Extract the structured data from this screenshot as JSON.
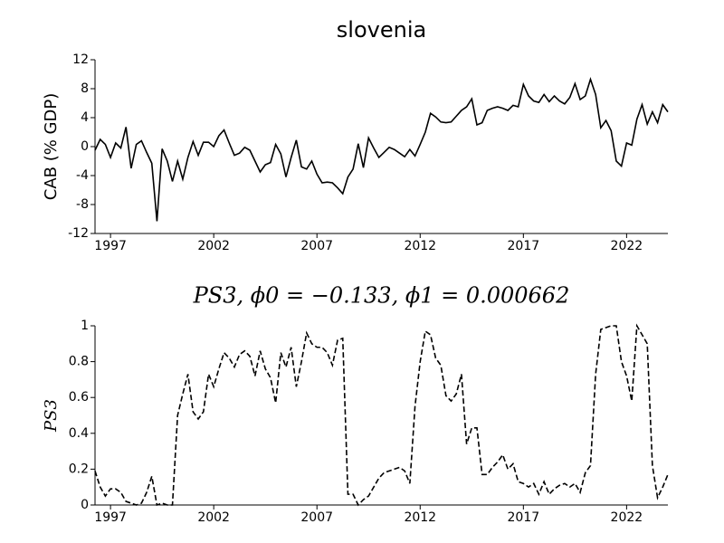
{
  "chart_data": [
    {
      "type": "line",
      "title": "slovenia",
      "ylabel": "CAB (% GDP)",
      "color": "#000000",
      "dash": false,
      "x": [
        1996.25,
        1996.5,
        1996.75,
        1997,
        1997.25,
        1997.5,
        1997.75,
        1998,
        1998.25,
        1998.5,
        1998.75,
        1999,
        1999.25,
        1999.5,
        1999.75,
        2000,
        2000.25,
        2000.5,
        2000.75,
        2001,
        2001.25,
        2001.5,
        2001.75,
        2002,
        2002.25,
        2002.5,
        2002.75,
        2003,
        2003.25,
        2003.5,
        2003.75,
        2004,
        2004.25,
        2004.5,
        2004.75,
        2005,
        2005.25,
        2005.5,
        2005.75,
        2006,
        2006.25,
        2006.5,
        2006.75,
        2007,
        2007.25,
        2007.5,
        2007.75,
        2008,
        2008.25,
        2008.5,
        2008.75,
        2009,
        2009.25,
        2009.5,
        2009.75,
        2010,
        2010.25,
        2010.5,
        2010.75,
        2011,
        2011.25,
        2011.5,
        2011.75,
        2012,
        2012.25,
        2012.5,
        2012.75,
        2013,
        2013.25,
        2013.5,
        2013.75,
        2014,
        2014.25,
        2014.5,
        2014.75,
        2015,
        2015.25,
        2015.5,
        2015.75,
        2016,
        2016.25,
        2016.5,
        2016.75,
        2017,
        2017.25,
        2017.5,
        2017.75,
        2018,
        2018.25,
        2018.5,
        2018.75,
        2019,
        2019.25,
        2019.5,
        2019.75,
        2020,
        2020.25,
        2020.5,
        2020.75,
        2021,
        2021.25,
        2021.5,
        2021.75,
        2022,
        2022.25,
        2022.5,
        2022.75,
        2023,
        2023.25,
        2023.5,
        2023.75,
        2024
      ],
      "values": [
        -0.5,
        1.0,
        0.3,
        -1.5,
        0.5,
        -0.2,
        2.7,
        -3.0,
        0.3,
        0.8,
        -0.8,
        -2.3,
        -10.3,
        -0.3,
        -2.0,
        -4.8,
        -2.0,
        -4.5,
        -1.5,
        0.7,
        -1.2,
        0.6,
        0.6,
        0.0,
        1.5,
        2.3,
        0.5,
        -1.2,
        -0.9,
        -0.1,
        -0.5,
        -2.0,
        -3.5,
        -2.5,
        -2.2,
        0.3,
        -1.0,
        -4.2,
        -1.5,
        0.9,
        -2.8,
        -3.1,
        -2.0,
        -3.8,
        -5.0,
        -4.9,
        -5.0,
        -5.7,
        -6.5,
        -4.2,
        -3.1,
        0.4,
        -2.9,
        1.2,
        -0.2,
        -1.5,
        -0.8,
        -0.1,
        -0.4,
        -0.9,
        -1.4,
        -0.4,
        -1.3,
        0.3,
        2.0,
        4.6,
        4.1,
        3.4,
        3.3,
        3.4,
        4.2,
        5.0,
        5.5,
        6.6,
        3.0,
        3.3,
        5.0,
        5.3,
        5.5,
        5.3,
        5.0,
        5.7,
        5.5,
        8.6,
        7.0,
        6.3,
        6.1,
        7.2,
        6.2,
        7.0,
        6.3,
        5.9,
        6.8,
        8.7,
        6.5,
        7.0,
        9.3,
        7.2,
        2.6,
        3.6,
        2.2,
        -2.0,
        -2.7,
        0.5,
        0.2,
        3.8,
        5.8,
        3.1,
        4.8,
        3.3,
        5.8,
        4.8
      ],
      "xlim": [
        1996.25,
        2024
      ],
      "xticks": [
        1997,
        2002,
        2007,
        2012,
        2017,
        2022
      ],
      "ylim": [
        -12,
        12
      ],
      "yticks": [
        -12,
        -8,
        -4,
        0,
        4,
        8,
        12
      ]
    },
    {
      "type": "line",
      "title": "PS3, ϕ0 = −0.133, ϕ1 = 0.000662",
      "ylabel": "PS3",
      "color": "#000000",
      "dash": true,
      "x": [
        1996.25,
        1996.5,
        1996.75,
        1997,
        1997.25,
        1997.5,
        1997.75,
        1998,
        1998.25,
        1998.5,
        1998.75,
        1999,
        1999.25,
        1999.5,
        1999.75,
        2000,
        2000.25,
        2000.5,
        2000.75,
        2001,
        2001.25,
        2001.5,
        2001.75,
        2002,
        2002.25,
        2002.5,
        2002.75,
        2003,
        2003.25,
        2003.5,
        2003.75,
        2004,
        2004.25,
        2004.5,
        2004.75,
        2005,
        2005.25,
        2005.5,
        2005.75,
        2006,
        2006.25,
        2006.5,
        2006.75,
        2007,
        2007.25,
        2007.5,
        2007.75,
        2008,
        2008.25,
        2008.5,
        2008.75,
        2009,
        2009.25,
        2009.5,
        2009.75,
        2010,
        2010.25,
        2010.5,
        2010.75,
        2011,
        2011.25,
        2011.5,
        2011.75,
        2012,
        2012.25,
        2012.5,
        2012.75,
        2013,
        2013.25,
        2013.5,
        2013.75,
        2014,
        2014.25,
        2014.5,
        2014.75,
        2015,
        2015.25,
        2015.5,
        2015.75,
        2016,
        2016.25,
        2016.5,
        2016.75,
        2017,
        2017.25,
        2017.5,
        2017.75,
        2018,
        2018.25,
        2018.5,
        2018.75,
        2019,
        2019.25,
        2019.5,
        2019.75,
        2020,
        2020.25,
        2020.5,
        2020.75,
        2021,
        2021.25,
        2021.5,
        2021.75,
        2022,
        2022.25,
        2022.5,
        2022.75,
        2023,
        2023.25,
        2023.5,
        2023.75,
        2024
      ],
      "values": [
        0.19,
        0.1,
        0.05,
        0.09,
        0.09,
        0.07,
        0.02,
        0.01,
        0.0,
        0.01,
        0.07,
        0.16,
        0.0,
        0.01,
        0.0,
        0.0,
        0.5,
        0.62,
        0.73,
        0.52,
        0.48,
        0.52,
        0.73,
        0.66,
        0.76,
        0.85,
        0.82,
        0.77,
        0.84,
        0.86,
        0.83,
        0.72,
        0.86,
        0.76,
        0.71,
        0.57,
        0.85,
        0.77,
        0.88,
        0.66,
        0.8,
        0.96,
        0.9,
        0.88,
        0.88,
        0.85,
        0.78,
        0.92,
        0.93,
        0.06,
        0.06,
        0.0,
        0.03,
        0.05,
        0.1,
        0.15,
        0.18,
        0.19,
        0.2,
        0.21,
        0.19,
        0.12,
        0.55,
        0.8,
        0.97,
        0.95,
        0.82,
        0.78,
        0.61,
        0.58,
        0.62,
        0.73,
        0.34,
        0.43,
        0.43,
        0.17,
        0.17,
        0.21,
        0.24,
        0.28,
        0.2,
        0.23,
        0.13,
        0.12,
        0.1,
        0.12,
        0.06,
        0.13,
        0.06,
        0.09,
        0.11,
        0.12,
        0.1,
        0.12,
        0.07,
        0.18,
        0.22,
        0.73,
        0.98,
        0.99,
        1.0,
        1.0,
        0.8,
        0.72,
        0.58,
        1.0,
        0.95,
        0.9,
        0.22,
        0.04,
        0.1,
        0.17
      ],
      "xlim": [
        1996.25,
        2024
      ],
      "xticks": [
        1997,
        2002,
        2007,
        2012,
        2017,
        2022
      ],
      "ylim": [
        0,
        1
      ],
      "yticks": [
        0,
        0.2,
        0.4,
        0.6,
        0.8,
        1
      ]
    }
  ]
}
